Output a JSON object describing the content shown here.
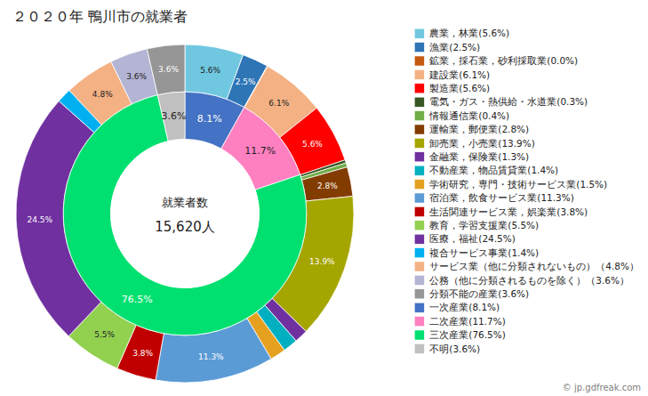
{
  "chart_data": {
    "type": "pie",
    "title": "２０２０年 鴨川市の就業者",
    "annotations": [
      "就業者数",
      "15,620人"
    ],
    "watermark": "© jp.gdfreak.com",
    "legend": "right",
    "data_labels": true,
    "series": [
      {
        "categories": [
          "農業，林業(5.6%)",
          "漁業(2.5%)",
          "鉱業，採石業，砂利採取業(0.0%)",
          "建設業(6.1%)",
          "製造業(5.6%)",
          "電気・ガス・熱供給・水道業(0.3%)",
          "情報通信業(0.4%)",
          "運輸業，郵便業(2.8%)",
          "卸売業，小売業(13.9%)",
          "金融業，保険業(1.3%)",
          "不動産業，物品賃貸業(1.4%)",
          "学術研究，専門・技術サービス業(1.5%)",
          "宿泊業，飲食サービス業(11.3%)",
          "生活関連サービス業，娯楽業(3.8%)",
          "教育，学習支援業(5.5%)",
          "医療，福祉(24.5%)",
          "複合サービス事業(1.4%)",
          "サービス業（他に分類されないもの）（4.8%）",
          "公務（他に分類されるものを除く）（3.6%）",
          "分類不能の産業(3.6%)"
        ],
        "values": [
          5.6,
          2.5,
          0.05,
          6.1,
          5.6,
          0.3,
          0.4,
          2.8,
          13.9,
          1.3,
          1.4,
          1.5,
          11.3,
          3.8,
          5.5,
          24.5,
          1.4,
          4.8,
          3.6,
          3.6
        ],
        "value_labels": [
          "5.6%",
          "2.5%",
          null,
          "6.1%",
          "5.6%",
          null,
          null,
          "2.8%",
          "13.9%",
          null,
          null,
          null,
          "11.3%",
          "3.8%",
          "5.5%",
          "24.5%",
          null,
          "4.8%",
          "3.6%",
          "3.6%"
        ],
        "colors": [
          "#70c8e0",
          "#2e75b6",
          "#c55a11",
          "#f4b183",
          "#ff0000",
          "#375623",
          "#70ad47",
          "#833c00",
          "#a5a500",
          "#7030a0",
          "#00b0c0",
          "#e6a020",
          "#5b9bd5",
          "#c00000",
          "#92d050",
          "#7030a0",
          "#00b0f0",
          "#f4b183",
          "#b4b4d4",
          "#969696"
        ]
      },
      {
        "categories": [
          "一次産業(8.1%)",
          "二次産業(11.7%)",
          "三次産業(76.5%)",
          "不明(3.6%)"
        ],
        "values": [
          8.1,
          11.7,
          76.5,
          3.6
        ],
        "value_labels": [
          "8.1%",
          "11.7%",
          "76.5%",
          "3.6%"
        ],
        "colors": [
          "#4472c4",
          "#ff80c0",
          "#00e070",
          "#c0c0c0"
        ]
      }
    ]
  }
}
